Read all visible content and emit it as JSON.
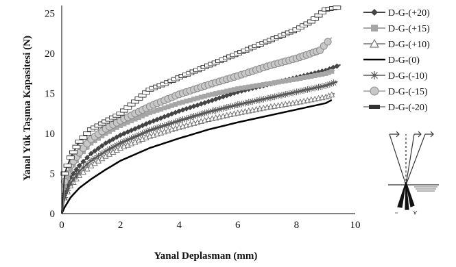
{
  "chart_data": {
    "type": "line",
    "title": "",
    "xlabel": "Yanal Deplasman (mm)",
    "ylabel": "Yanal Yük Taşıma Kapasitesi (N)",
    "xlim": [
      0,
      10
    ],
    "ylim": [
      0,
      26
    ],
    "x_ticks": [
      "0",
      "2",
      "4",
      "6",
      "8",
      "10"
    ],
    "y_ticks": [
      "0",
      "5",
      "10",
      "15",
      "20",
      "25"
    ],
    "grid": false,
    "legend_position": "right",
    "series": [
      {
        "name": "D-G-(+20)",
        "color": "#444444",
        "marker": "diamond",
        "x": [
          0,
          0.1,
          0.3,
          0.6,
          1,
          1.5,
          2,
          3,
          4,
          5,
          6,
          7,
          8,
          9,
          9.5
        ],
        "y": [
          0,
          2.5,
          4.5,
          6,
          7.5,
          8.8,
          9.8,
          11.4,
          12.8,
          14,
          15.2,
          16.1,
          17.0,
          17.9,
          18.6
        ]
      },
      {
        "name": "D-G-(+15)",
        "color": "#a6a6a6",
        "marker": "square",
        "x": [
          0,
          0.1,
          0.3,
          0.6,
          1,
          1.5,
          2,
          3,
          4,
          5,
          6,
          7,
          8,
          9,
          9.3
        ],
        "y": [
          0,
          3.5,
          5.5,
          7.2,
          8.8,
          10,
          11,
          12.6,
          13.8,
          14.8,
          15.6,
          16.2,
          16.8,
          17.5,
          17.9
        ]
      },
      {
        "name": "D-G-(+10)",
        "color": "#777777",
        "marker": "triangle",
        "x": [
          0,
          0.1,
          0.3,
          0.6,
          1,
          1.5,
          2,
          3,
          4,
          5,
          6,
          7,
          8,
          9,
          9.3
        ],
        "y": [
          0,
          2,
          3.5,
          4.8,
          6,
          7.2,
          8.2,
          9.7,
          10.8,
          11.8,
          12.6,
          13.3,
          13.9,
          14.6,
          15
        ]
      },
      {
        "name": "D-G-(0)",
        "color": "#000000",
        "marker": "none",
        "x": [
          0,
          0.1,
          0.3,
          0.6,
          1,
          1.5,
          2,
          3,
          4,
          5,
          6,
          7,
          8,
          9,
          9.2
        ],
        "y": [
          0,
          0.8,
          2,
          3.2,
          4.3,
          5.5,
          6.6,
          8.2,
          9.4,
          10.5,
          11.4,
          12.2,
          13,
          13.8,
          14.2
        ]
      },
      {
        "name": "D-G-(-10)",
        "color": "#555555",
        "marker": "star",
        "x": [
          0,
          0.1,
          0.3,
          0.6,
          1,
          1.5,
          2,
          3,
          4,
          5,
          6,
          7,
          8,
          9,
          9.4
        ],
        "y": [
          0,
          2,
          3.8,
          5.3,
          6.6,
          7.8,
          8.8,
          10.4,
          11.6,
          12.7,
          13.6,
          14.4,
          15.2,
          16,
          16.5
        ]
      },
      {
        "name": "D-G-(-15)",
        "color": "#b4b4b4",
        "marker": "circle",
        "x": [
          0,
          0.1,
          0.3,
          0.6,
          1,
          1.5,
          2,
          3,
          4,
          5,
          6,
          7,
          8,
          8.8,
          9.2
        ],
        "y": [
          0,
          4,
          6,
          7.6,
          9.3,
          10.6,
          11.6,
          13.4,
          14.9,
          16.1,
          17.2,
          18.4,
          19.4,
          20.4,
          22
        ]
      },
      {
        "name": "D-G-(-20)",
        "color": "#333333",
        "marker": "dash",
        "x": [
          0,
          0.1,
          0.3,
          0.6,
          1,
          1.5,
          2,
          2.5,
          3,
          3.5,
          4,
          5,
          6,
          7,
          8,
          8.5,
          9,
          9.5
        ],
        "y": [
          0,
          5,
          7,
          9,
          10.5,
          11.5,
          12.5,
          14,
          15.5,
          16.2,
          17,
          18.5,
          20,
          21.5,
          23,
          24,
          25.5,
          25.8
        ]
      }
    ]
  }
}
